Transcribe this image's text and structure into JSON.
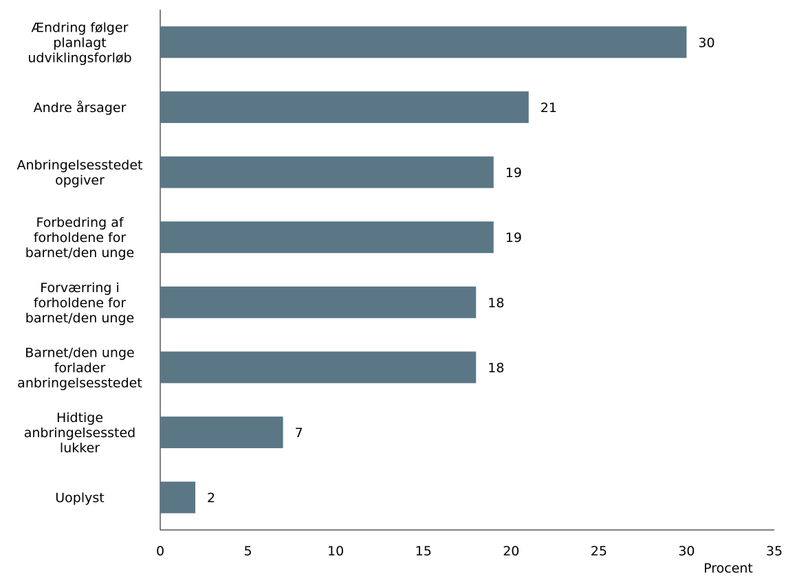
{
  "chart_data": {
    "type": "bar",
    "orientation": "horizontal",
    "categories": [
      [
        "Ændring følger",
        "planlagt",
        "udviklingsforløb"
      ],
      [
        "Andre årsager"
      ],
      [
        "Anbringelsesstedet",
        "opgiver"
      ],
      [
        "Forbedring af",
        "forholdene for",
        "barnet/den unge"
      ],
      [
        "Forværring i",
        "forholdene for",
        "barnet/den unge"
      ],
      [
        "Barnet/den unge",
        "forlader",
        "anbringelsesstedet"
      ],
      [
        "Hidtige",
        "anbringelsessted",
        "lukker"
      ],
      [
        "Uoplyst"
      ]
    ],
    "values": [
      30,
      21,
      19,
      19,
      18,
      18,
      7,
      2
    ],
    "data_labels": [
      "30",
      "21",
      "19",
      "19",
      "18",
      "18",
      "7",
      "2"
    ],
    "xlim": [
      0,
      35
    ],
    "xticks": [
      0,
      5,
      10,
      15,
      20,
      25,
      30,
      35
    ],
    "xtick_labels": [
      "0",
      "5",
      "10",
      "15",
      "20",
      "25",
      "30",
      "35"
    ],
    "xlabel": "Procent",
    "ylabel": "",
    "title": "",
    "grid": false,
    "legend": "none",
    "bar_color": "#5B7786"
  }
}
